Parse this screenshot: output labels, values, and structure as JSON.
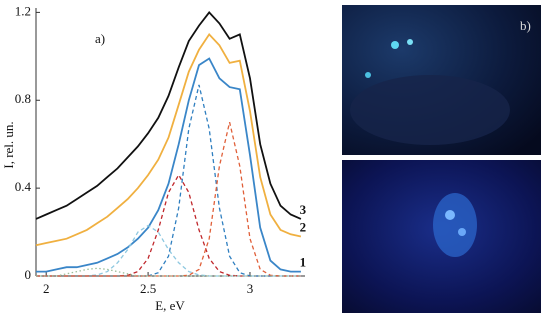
{
  "chart_data": {
    "type": "line",
    "xlabel": "E, eV",
    "ylabel": "I, rel. un.",
    "panel_label": "a)",
    "image_label": "b)",
    "x": [
      1.95,
      2.0,
      2.05,
      2.1,
      2.15,
      2.2,
      2.25,
      2.3,
      2.35,
      2.4,
      2.45,
      2.5,
      2.55,
      2.6,
      2.65,
      2.7,
      2.75,
      2.8,
      2.85,
      2.9,
      2.95,
      3.0,
      3.05,
      3.1,
      3.15,
      3.2,
      3.25
    ],
    "xlim": [
      1.95,
      3.27
    ],
    "xticks": [
      2,
      2.5,
      3
    ],
    "ylim": [
      0,
      1.22
    ],
    "yticks": [
      0,
      0.4,
      0.8,
      1.2
    ],
    "series": [
      {
        "name": "3",
        "color": "#111111",
        "linestyle": "solid",
        "values": [
          0.26,
          0.28,
          0.3,
          0.32,
          0.35,
          0.38,
          0.41,
          0.45,
          0.49,
          0.54,
          0.59,
          0.65,
          0.72,
          0.82,
          0.95,
          1.07,
          1.14,
          1.2,
          1.15,
          1.08,
          1.1,
          0.9,
          0.6,
          0.42,
          0.32,
          0.28,
          0.26
        ]
      },
      {
        "name": "2",
        "color": "#f0b040",
        "linestyle": "solid",
        "values": [
          0.14,
          0.15,
          0.16,
          0.17,
          0.19,
          0.21,
          0.24,
          0.27,
          0.31,
          0.35,
          0.4,
          0.46,
          0.53,
          0.63,
          0.78,
          0.93,
          1.03,
          1.1,
          1.05,
          0.97,
          0.98,
          0.75,
          0.45,
          0.28,
          0.21,
          0.19,
          0.18
        ]
      },
      {
        "name": "1",
        "color": "#3a86c8",
        "linestyle": "solid",
        "values": [
          0.02,
          0.02,
          0.03,
          0.04,
          0.04,
          0.05,
          0.06,
          0.08,
          0.1,
          0.13,
          0.17,
          0.22,
          0.3,
          0.42,
          0.6,
          0.8,
          0.96,
          0.99,
          0.9,
          0.86,
          0.85,
          0.55,
          0.22,
          0.07,
          0.03,
          0.02,
          0.02
        ]
      },
      {
        "color": "#8ec8e0",
        "linestyle": "dashed",
        "values": [
          0,
          0,
          0,
          0,
          0,
          0,
          0.005,
          0.02,
          0.06,
          0.12,
          0.2,
          0.23,
          0.2,
          0.12,
          0.06,
          0.02,
          0.005,
          0,
          0,
          0,
          0,
          0,
          0,
          0,
          0,
          0,
          0
        ]
      },
      {
        "color": "#c0282c",
        "linestyle": "dashed",
        "values": [
          0,
          0,
          0,
          0,
          0,
          0,
          0,
          0,
          0,
          0.003,
          0.02,
          0.08,
          0.21,
          0.38,
          0.46,
          0.38,
          0.21,
          0.08,
          0.02,
          0.003,
          0,
          0,
          0,
          0,
          0,
          0,
          0
        ]
      },
      {
        "color": "#2f7fc0",
        "linestyle": "dashed",
        "values": [
          0,
          0,
          0,
          0,
          0,
          0,
          0,
          0,
          0,
          0,
          0,
          0,
          0.015,
          0.09,
          0.31,
          0.67,
          0.87,
          0.67,
          0.31,
          0.09,
          0.015,
          0,
          0,
          0,
          0,
          0,
          0
        ]
      },
      {
        "color": "#e0603a",
        "linestyle": "dashed",
        "values": [
          0,
          0,
          0,
          0,
          0,
          0,
          0,
          0,
          0,
          0,
          0,
          0,
          0,
          0,
          0,
          0.003,
          0.03,
          0.17,
          0.5,
          0.7,
          0.5,
          0.17,
          0.03,
          0.003,
          0,
          0,
          0
        ]
      },
      {
        "color": "#9bbf9b",
        "linestyle": "dotted",
        "values": [
          0,
          0,
          0,
          0.01,
          0.02,
          0.03,
          0.035,
          0.03,
          0.02,
          0.01,
          0,
          0,
          0,
          0,
          0,
          0,
          0,
          0,
          0,
          0,
          0,
          0,
          0,
          0,
          0,
          0,
          0
        ]
      }
    ]
  }
}
